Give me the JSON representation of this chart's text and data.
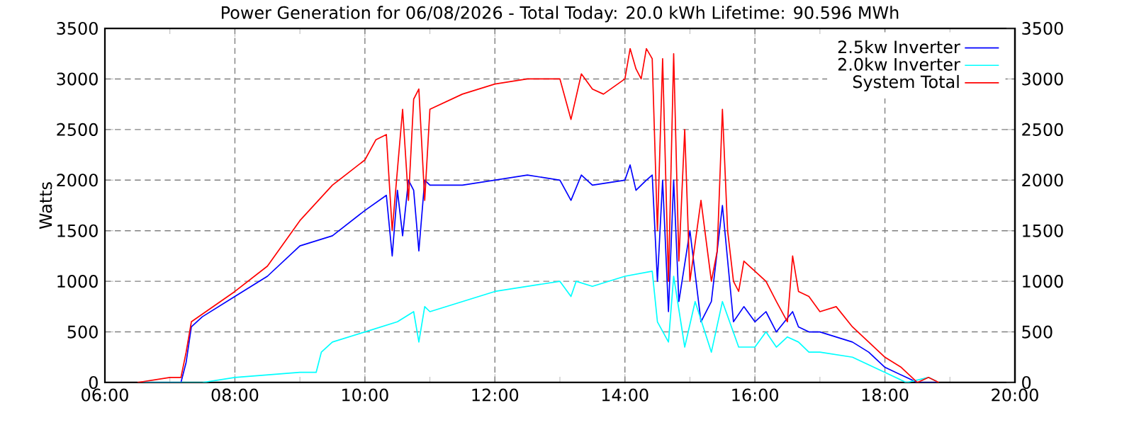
{
  "chart_data": {
    "type": "line",
    "title": "Power Generation for 06/08/2026 - Total Today: 20.0 kWh   Lifetime: 90.596 MWh",
    "ylabel": "Watts",
    "xlim": [
      6,
      20
    ],
    "ylim": [
      0,
      3500
    ],
    "y2lim": [
      0,
      3500
    ],
    "xticks": [
      {
        "value": 6,
        "label": "06:00"
      },
      {
        "value": 7,
        "label": null
      },
      {
        "value": 8,
        "label": "08:00"
      },
      {
        "value": 9,
        "label": null
      },
      {
        "value": 10,
        "label": "10:00"
      },
      {
        "value": 11,
        "label": null
      },
      {
        "value": 12,
        "label": "12:00"
      },
      {
        "value": 13,
        "label": null
      },
      {
        "value": 14,
        "label": "14:00"
      },
      {
        "value": 15,
        "label": null
      },
      {
        "value": 16,
        "label": "16:00"
      },
      {
        "value": 17,
        "label": null
      },
      {
        "value": 18,
        "label": "18:00"
      },
      {
        "value": 19,
        "label": null
      },
      {
        "value": 20,
        "label": "20:00"
      }
    ],
    "yticks": [
      0,
      500,
      1000,
      1500,
      2000,
      2500,
      3000,
      3500
    ],
    "y2ticks": [
      0,
      500,
      1000,
      1500,
      2000,
      2500,
      3000,
      3500
    ],
    "grid": true,
    "legend": "top right",
    "marker": "none",
    "line_style": "solid",
    "series": [
      {
        "name": "2.5kw Inverter",
        "color": "#0000ff",
        "x": [
          6.5,
          7.0,
          7.17,
          7.25,
          7.33,
          7.5,
          8.0,
          8.5,
          9.0,
          9.5,
          10.0,
          10.33,
          10.42,
          10.5,
          10.58,
          10.67,
          10.75,
          10.83,
          10.92,
          11.0,
          11.5,
          12.0,
          12.5,
          13.0,
          13.17,
          13.33,
          13.5,
          14.0,
          14.08,
          14.17,
          14.33,
          14.42,
          14.5,
          14.58,
          14.67,
          14.75,
          14.83,
          15.0,
          15.17,
          15.33,
          15.5,
          15.67,
          15.83,
          16.0,
          16.17,
          16.33,
          16.58,
          16.67,
          16.83,
          17.0,
          17.25,
          17.5,
          17.75,
          18.0,
          18.33,
          18.5,
          18.67,
          18.83
        ],
        "values": [
          0,
          0,
          0,
          200,
          550,
          650,
          850,
          1050,
          1350,
          1450,
          1700,
          1850,
          1250,
          1900,
          1450,
          2000,
          1900,
          1300,
          2000,
          1950,
          1950,
          2000,
          2050,
          2000,
          1800,
          2050,
          1950,
          2000,
          2150,
          1900,
          2000,
          2050,
          1000,
          2000,
          700,
          2000,
          800,
          1500,
          600,
          800,
          1750,
          600,
          750,
          600,
          700,
          500,
          700,
          550,
          500,
          500,
          450,
          400,
          300,
          150,
          50,
          0,
          null,
          0
        ]
      },
      {
        "name": "2.0kw Inverter",
        "color": "#00ffff",
        "x": [
          6.5,
          7.5,
          8.0,
          9.0,
          9.25,
          9.33,
          9.5,
          10.0,
          10.5,
          10.75,
          10.83,
          10.92,
          11.0,
          11.5,
          12.0,
          12.5,
          13.0,
          13.17,
          13.25,
          13.5,
          14.0,
          14.42,
          14.5,
          14.67,
          14.75,
          14.92,
          15.08,
          15.33,
          15.5,
          15.75,
          16.0,
          16.17,
          16.33,
          16.5,
          16.67,
          16.83,
          17.0,
          17.5,
          18.0,
          18.33,
          18.67,
          18.83
        ],
        "values": [
          0,
          0,
          50,
          100,
          100,
          300,
          400,
          500,
          600,
          700,
          400,
          750,
          700,
          800,
          900,
          950,
          1000,
          850,
          1000,
          950,
          1050,
          1100,
          600,
          400,
          1050,
          350,
          800,
          300,
          800,
          350,
          350,
          500,
          350,
          450,
          400,
          300,
          300,
          250,
          100,
          0,
          50,
          0
        ]
      },
      {
        "name": "System Total",
        "color": "#ff0000",
        "x": [
          6.5,
          7.0,
          7.17,
          7.25,
          7.33,
          8.0,
          8.5,
          9.0,
          9.5,
          10.0,
          10.17,
          10.33,
          10.42,
          10.58,
          10.67,
          10.75,
          10.83,
          10.92,
          11.0,
          11.5,
          12.0,
          12.5,
          13.0,
          13.17,
          13.33,
          13.5,
          13.67,
          14.0,
          14.08,
          14.17,
          14.25,
          14.33,
          14.42,
          14.5,
          14.58,
          14.67,
          14.75,
          14.83,
          14.92,
          15.0,
          15.17,
          15.33,
          15.42,
          15.5,
          15.58,
          15.67,
          15.75,
          15.83,
          16.0,
          16.17,
          16.33,
          16.5,
          16.58,
          16.67,
          16.83,
          17.0,
          17.25,
          17.5,
          17.75,
          18.0,
          18.25,
          18.5,
          18.67,
          18.83
        ],
        "values": [
          0,
          50,
          50,
          300,
          600,
          900,
          1150,
          1600,
          1950,
          2200,
          2400,
          2450,
          1500,
          2700,
          1800,
          2800,
          2900,
          1800,
          2700,
          2850,
          2950,
          3000,
          3000,
          2600,
          3050,
          2900,
          2850,
          3000,
          3300,
          3100,
          3000,
          3300,
          3200,
          1500,
          3200,
          1000,
          3250,
          1200,
          2500,
          1000,
          1800,
          1000,
          1300,
          2700,
          1500,
          1000,
          900,
          1200,
          1100,
          1000,
          800,
          600,
          1250,
          900,
          850,
          700,
          750,
          550,
          400,
          250,
          150,
          0,
          50,
          0
        ]
      }
    ]
  }
}
